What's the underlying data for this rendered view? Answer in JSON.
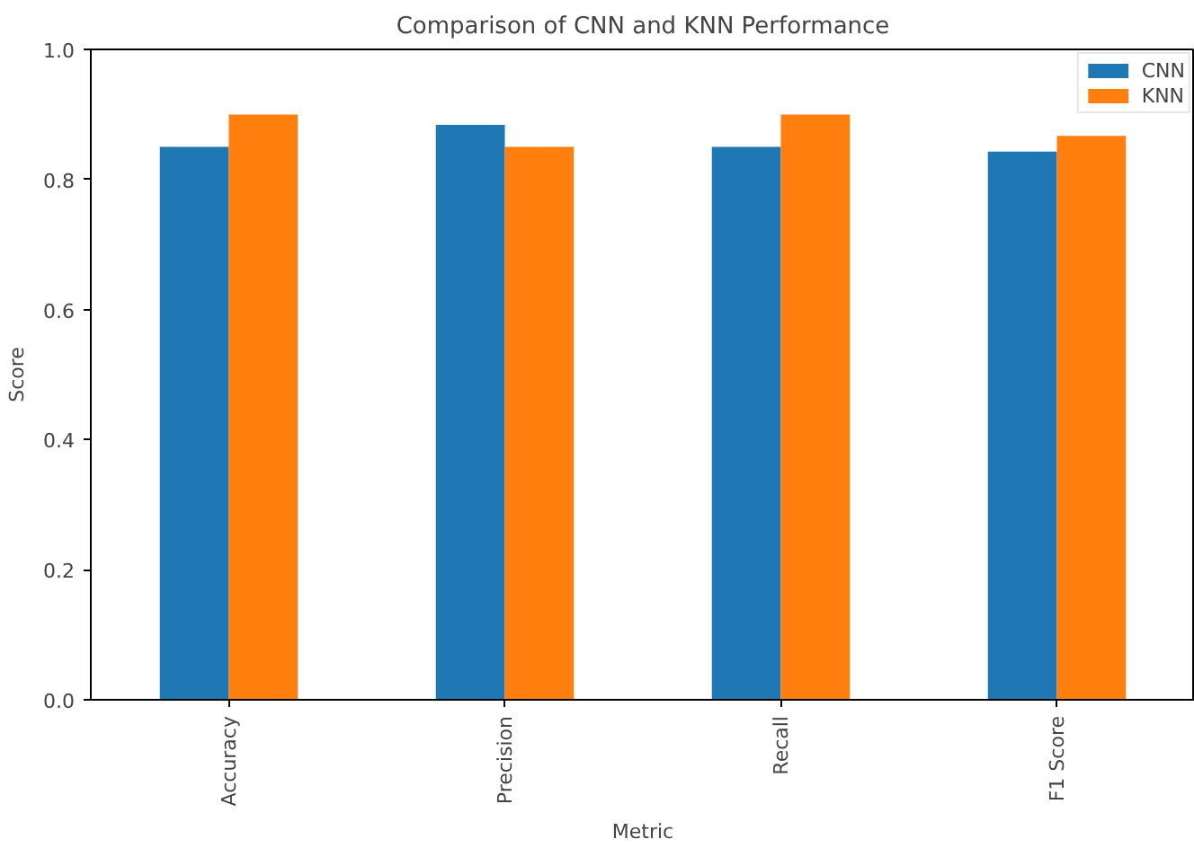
{
  "chart_data": {
    "type": "bar",
    "title": "Comparison of CNN and KNN Performance",
    "xlabel": "Metric",
    "ylabel": "Score",
    "categories": [
      "Accuracy",
      "Precision",
      "Recall",
      "F1 Score"
    ],
    "series": [
      {
        "name": "CNN",
        "color": "#1f77b4",
        "values": [
          0.85,
          0.884,
          0.85,
          0.843
        ]
      },
      {
        "name": "KNN",
        "color": "#ff7f0e",
        "values": [
          0.9,
          0.85,
          0.9,
          0.867
        ]
      }
    ],
    "ylim": [
      0,
      1.0
    ],
    "yticks": [
      {
        "value": 0,
        "label": "0.0"
      },
      {
        "value": 0.2,
        "label": "0.2"
      },
      {
        "value": 0.4,
        "label": "0.4"
      },
      {
        "value": 0.6,
        "label": "0.6"
      },
      {
        "value": 0.8,
        "label": "0.8"
      },
      {
        "value": 1.0,
        "label": "1.0"
      }
    ],
    "legend": "top right",
    "grid": false
  }
}
